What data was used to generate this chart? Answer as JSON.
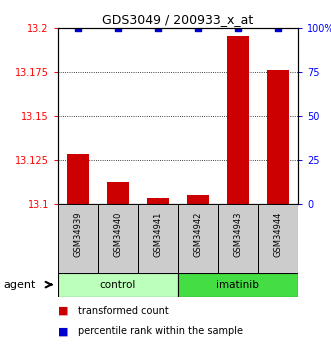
{
  "title": "GDS3049 / 200933_x_at",
  "samples": [
    "GSM34939",
    "GSM34940",
    "GSM34941",
    "GSM34942",
    "GSM34943",
    "GSM34944"
  ],
  "red_values": [
    13.128,
    13.112,
    13.103,
    13.105,
    13.195,
    13.176
  ],
  "blue_values": [
    100,
    100,
    100,
    100,
    100,
    100
  ],
  "ylim_left": [
    13.1,
    13.2
  ],
  "ylim_right": [
    0,
    100
  ],
  "left_ticks": [
    13.1,
    13.125,
    13.15,
    13.175,
    13.2
  ],
  "right_ticks": [
    0,
    25,
    50,
    75,
    100
  ],
  "right_tick_labels": [
    "0",
    "25",
    "50",
    "75",
    "100%"
  ],
  "bar_color": "#cc0000",
  "dot_color": "#0000cc",
  "control_color": "#bbffbb",
  "imatinib_color": "#44dd44",
  "sample_bg_color": "#cccccc",
  "agent_label": "agent",
  "legend_red": "transformed count",
  "legend_blue": "percentile rank within the sample",
  "gridline_values": [
    13.125,
    13.15,
    13.175
  ],
  "bar_width": 0.55
}
